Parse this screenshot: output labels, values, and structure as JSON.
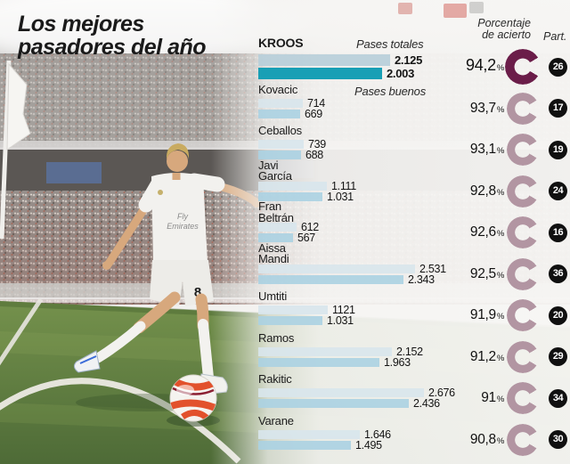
{
  "title": {
    "line1": "Los mejores",
    "line2": "pasadores del año"
  },
  "series_legend": {
    "totales": "Pases totales",
    "buenos": "Pases buenos"
  },
  "columns": {
    "accuracy_line1": "Porcentaje",
    "accuracy_line2": "de acierto",
    "participations": "Part."
  },
  "photo": {
    "shirt_line1": "Fly",
    "shirt_line2": "Emirates",
    "shorts_number": "8"
  },
  "colors": {
    "bar_totales": "#d8e6ec",
    "bar_buenos": "#abd1e2",
    "bar_totales_highlight": "#b7ced9",
    "bar_buenos_highlight": "#189fb5",
    "ring": "#b295a2",
    "ring_highlight": "#6b1d49",
    "badge_bg": "#101010",
    "badge_text": "#ffffff"
  },
  "chart_data": {
    "type": "bar",
    "orientation": "horizontal",
    "series_labels": [
      "Pases totales",
      "Pases buenos"
    ],
    "max_value": 2676,
    "players": [
      {
        "name_lines": [
          "KROOS"
        ],
        "highlight": true,
        "totales": "2.125",
        "totales_n": 2125,
        "buenos": "2.003",
        "buenos_n": 2003,
        "pct": "94,2",
        "part": "26"
      },
      {
        "name_lines": [
          "Kovacic"
        ],
        "totales": "714",
        "totales_n": 714,
        "buenos": "669",
        "buenos_n": 669,
        "pct": "93,7",
        "part": "17"
      },
      {
        "name_lines": [
          "Ceballos"
        ],
        "totales": "739",
        "totales_n": 739,
        "buenos": "688",
        "buenos_n": 688,
        "pct": "93,1",
        "part": "19"
      },
      {
        "name_lines": [
          "Javi",
          "García"
        ],
        "totales": "1.111",
        "totales_n": 1111,
        "buenos": "1.031",
        "buenos_n": 1031,
        "pct": "92,8",
        "part": "24"
      },
      {
        "name_lines": [
          "Fran",
          "Beltrán"
        ],
        "totales": "612",
        "totales_n": 612,
        "buenos": "567",
        "buenos_n": 567,
        "pct": "92,6",
        "part": "16"
      },
      {
        "name_lines": [
          "Aissa",
          "Mandi"
        ],
        "totales": "2.531",
        "totales_n": 2531,
        "buenos": "2.343",
        "buenos_n": 2343,
        "pct": "92,5",
        "part": "36"
      },
      {
        "name_lines": [
          "Umtiti"
        ],
        "totales": "1121",
        "totales_n": 1121,
        "buenos": "1.031",
        "buenos_n": 1031,
        "pct": "91,9",
        "part": "20"
      },
      {
        "name_lines": [
          "Ramos"
        ],
        "totales": "2.152",
        "totales_n": 2152,
        "buenos": "1.963",
        "buenos_n": 1963,
        "pct": "91,2",
        "part": "29"
      },
      {
        "name_lines": [
          "Rakitic"
        ],
        "totales": "2.676",
        "totales_n": 2676,
        "buenos": "2.436",
        "buenos_n": 2436,
        "pct": "91",
        "part": "34"
      },
      {
        "name_lines": [
          "Varane"
        ],
        "totales": "1.646",
        "totales_n": 1646,
        "buenos": "1.495",
        "buenos_n": 1495,
        "pct": "90,8",
        "part": "30"
      }
    ]
  }
}
